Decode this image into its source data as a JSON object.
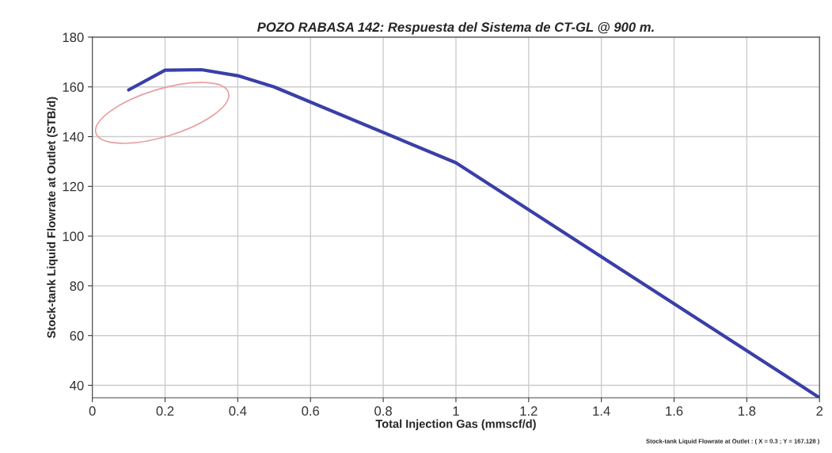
{
  "chart_data": {
    "type": "line",
    "title": "POZO RABASA 142: Respuesta del Sistema de CT-GL @ 900 m.",
    "xlabel": "Total Injection Gas (mmscf/d)",
    "ylabel": "Stock-tank Liquid Flowrate at Outlet (STB/d)",
    "x": [
      0.1,
      0.2,
      0.3,
      0.4,
      0.5,
      1,
      2
    ],
    "series": [
      {
        "color": "#3a3fa8",
        "values": [
          158.8,
          166.7,
          166.9,
          164.5,
          160,
          129.5,
          35
        ]
      }
    ],
    "xlim": [
      0,
      2
    ],
    "xticks": [
      0,
      0.2,
      0.4,
      0.6,
      0.8,
      1,
      1.2,
      1.4,
      1.6,
      1.8,
      2
    ],
    "ylim": [
      35,
      180
    ],
    "yticks": [
      40,
      60,
      80,
      100,
      120,
      140,
      160,
      180
    ],
    "grid": true,
    "marker": "none",
    "line_style": "solid",
    "annotations": [
      "Stock-tank Liquid Flowrate at Outlet : ( X = 0.3 ; Y = 167.128 )"
    ]
  }
}
